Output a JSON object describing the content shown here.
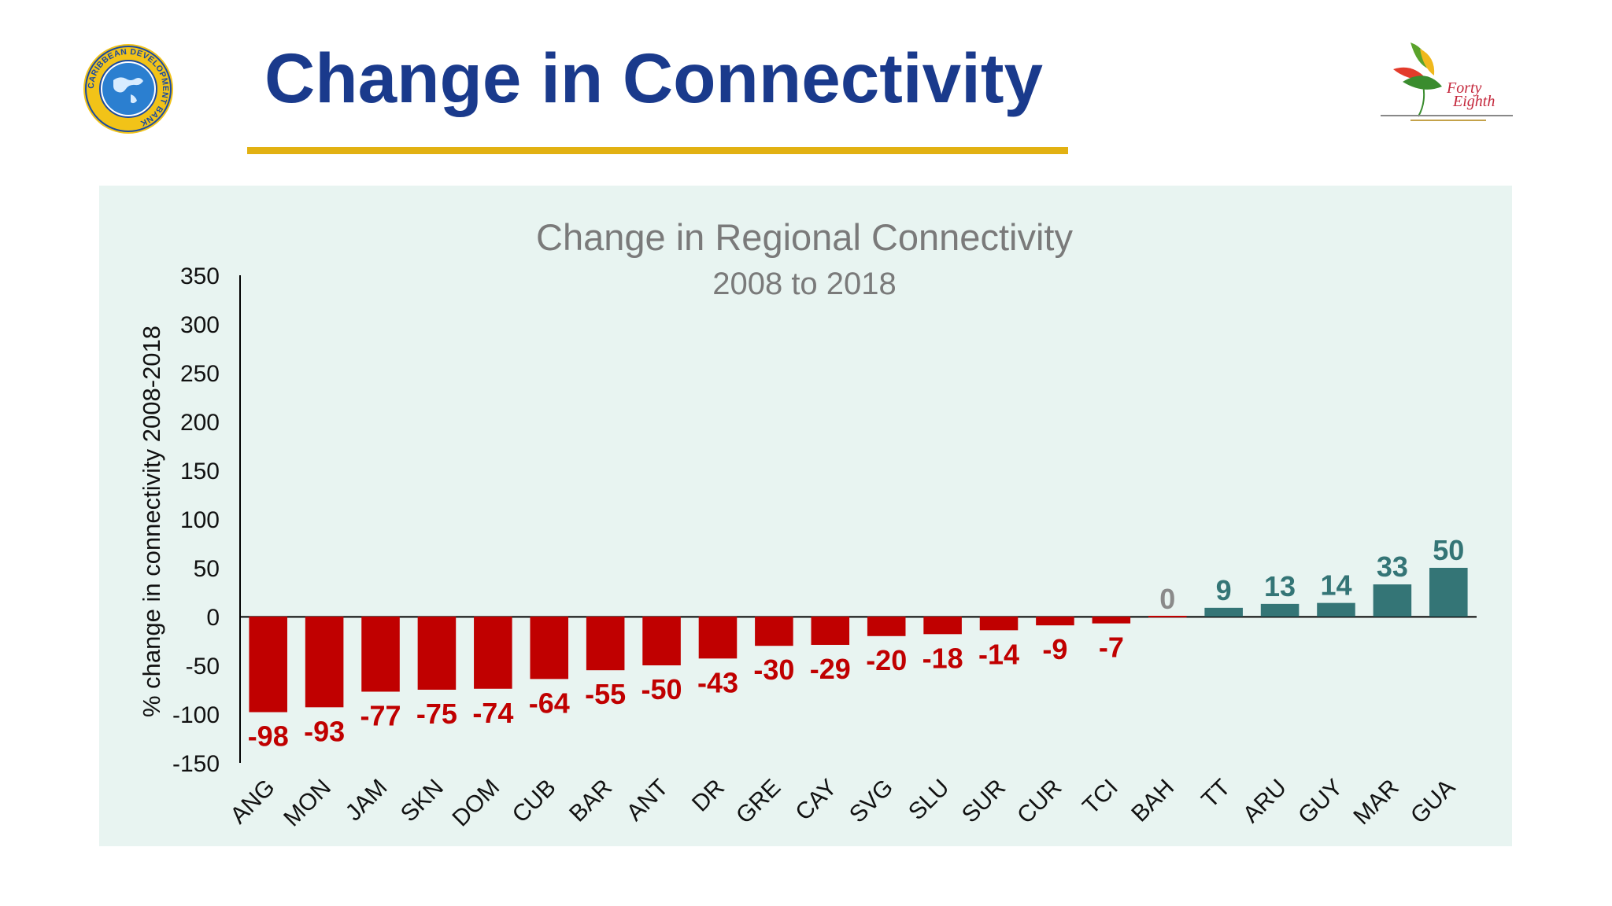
{
  "slide": {
    "title": "Change in Connectivity"
  },
  "logos": {
    "left_text": "CARIBBEAN DEVELOPMENT BANK",
    "right_text_line1": "Forty",
    "right_text_line2": "Eighth"
  },
  "colors": {
    "title": "#1a3a8c",
    "rule": "#e2b112",
    "negative": "#c00000",
    "positive": "#347576",
    "zero": "#8a8a8a",
    "panel": "#e8f4f1"
  },
  "chart_data": {
    "type": "bar",
    "title": "Change in Regional Connectivity",
    "subtitle": "2008 to 2018",
    "ylabel": "% change in connectivity 2008-2018",
    "xlabel": "",
    "ylim": [
      -150,
      350
    ],
    "yticks": [
      350,
      300,
      250,
      200,
      150,
      100,
      50,
      0,
      -50,
      -100,
      -150
    ],
    "grid": false,
    "legend": "none",
    "categories": [
      "ANG",
      "MON",
      "JAM",
      "SKN",
      "DOM",
      "CUB",
      "BAR",
      "ANT",
      "DR",
      "GRE",
      "CAY",
      "SVG",
      "SLU",
      "SUR",
      "CUR",
      "TCI",
      "BAH",
      "TT",
      "ARU",
      "GUY",
      "MAR",
      "GUA"
    ],
    "values": [
      -98,
      -93,
      -77,
      -75,
      -74,
      -64,
      -55,
      -50,
      -43,
      -30,
      -29,
      -20,
      -18,
      -14,
      -9,
      -7,
      0,
      9,
      13,
      14,
      33,
      50
    ]
  }
}
